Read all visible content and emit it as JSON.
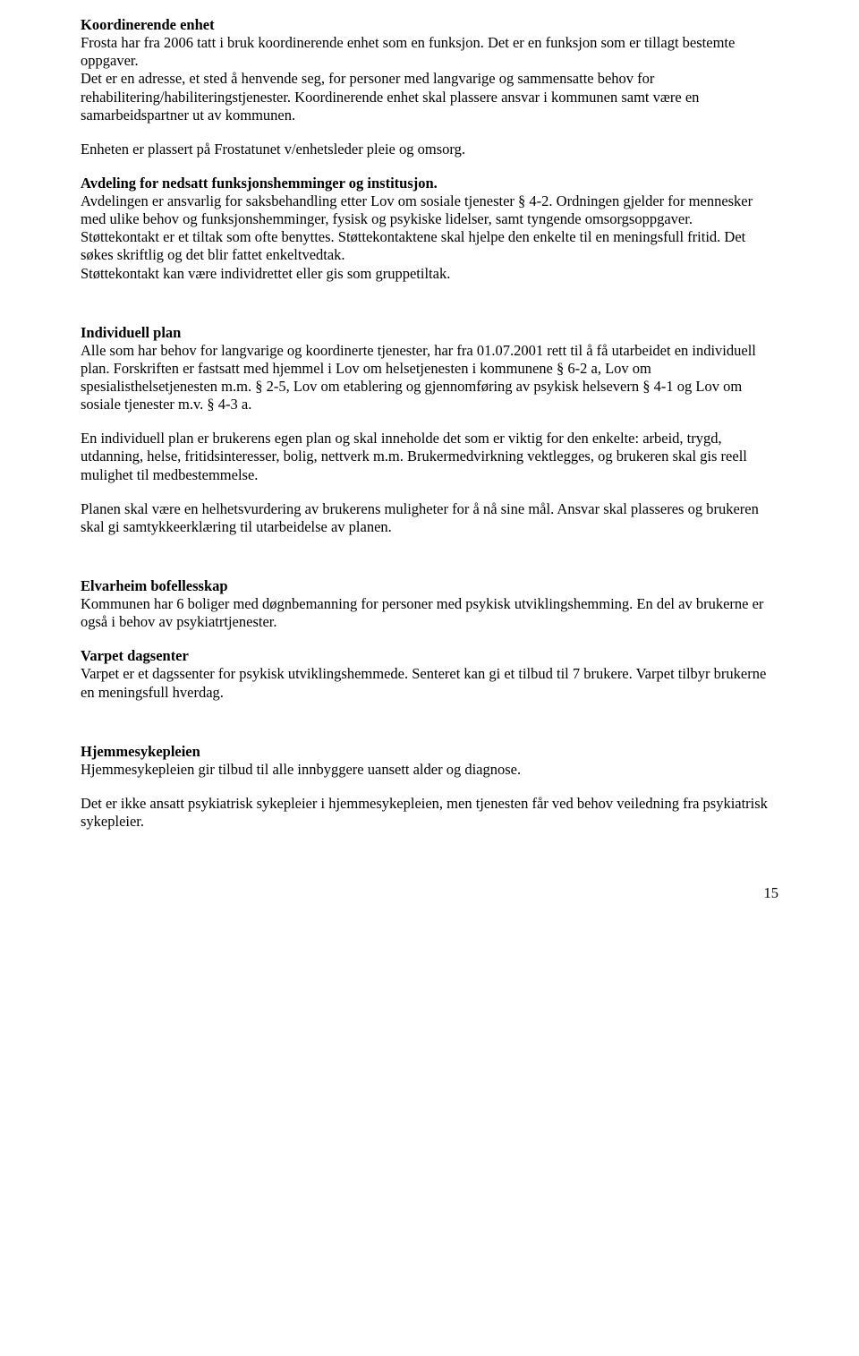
{
  "koord": {
    "title": "Koordinerende enhet",
    "p1": "Frosta har fra 2006 tatt i bruk koordinerende enhet som en funksjon. Det er en funksjon som er tillagt bestemte oppgaver.",
    "p2": "Det er en adresse, et sted å henvende seg, for personer med langvarige og sammensatte behov for rehabilitering/habiliteringstjenester. Koordinerende enhet skal plassere ansvar i kommunen samt være en samarbeidspartner ut av kommunen.",
    "p3": "Enheten er plassert på Frostatunet v/enhetsleder pleie og omsorg."
  },
  "avd": {
    "title": "Avdeling for nedsatt funksjonshemminger og institusjon.",
    "p1a": "Avdelingen er ansvarlig for saksbehandling etter Lov om sosiale tjenester § 4-2. Ordningen gjelder for mennesker med ulike behov og funksjonshemminger, fysisk og psykiske lidelser, samt tyngende omsorgsoppgaver.",
    "p1b": "Støttekontakt er et tiltak som ofte benyttes. Støttekontaktene skal hjelpe den enkelte til en meningsfull fritid. Det søkes skriftlig og det blir fattet enkeltvedtak.",
    "p1c": "Støttekontakt kan være individrettet eller gis som gruppetiltak."
  },
  "indplan": {
    "title": "Individuell plan",
    "p1": "Alle som har behov for langvarige og koordinerte tjenester, har fra 01.07.2001 rett til å få utarbeidet en individuell plan. Forskriften er fastsatt med hjemmel i Lov om helsetjenesten i kommunene § 6-2 a, Lov om spesialisthelsetjenesten m.m. § 2-5, Lov om etablering og gjennomføring av psykisk helsevern § 4-1 og Lov om sosiale tjenester m.v. § 4-3 a.",
    "p2": "En individuell plan er brukerens egen plan og skal inneholde det som er viktig for den enkelte: arbeid, trygd, utdanning, helse, fritidsinteresser, bolig, nettverk m.m. Brukermedvirkning vektlegges, og brukeren skal gis reell mulighet til medbestemmelse.",
    "p3": "Planen skal være en helhetsvurdering av brukerens muligheter for å nå sine mål. Ansvar skal plasseres og brukeren skal gi samtykkeerklæring til utarbeidelse av planen."
  },
  "elvar": {
    "title": "Elvarheim bofellesskap",
    "p1": "Kommunen har 6 boliger med døgnbemanning for personer med psykisk utviklingshemming. En del av brukerne er også i behov av psykiatrtjenester."
  },
  "varpet": {
    "title": "Varpet dagsenter",
    "p1": "Varpet er et dagssenter for psykisk utviklingshemmede. Senteret kan gi et tilbud til 7 brukere. Varpet tilbyr brukerne en meningsfull hverdag."
  },
  "hjemme": {
    "title": "Hjemmesykepleien",
    "p1": "Hjemmesykepleien gir tilbud til alle innbyggere uansett alder og diagnose.",
    "p2": "Det er ikke ansatt psykiatrisk sykepleier i hjemmesykepleien, men tjenesten får ved behov veiledning fra psykiatrisk sykepleier."
  },
  "pagenum": "15"
}
